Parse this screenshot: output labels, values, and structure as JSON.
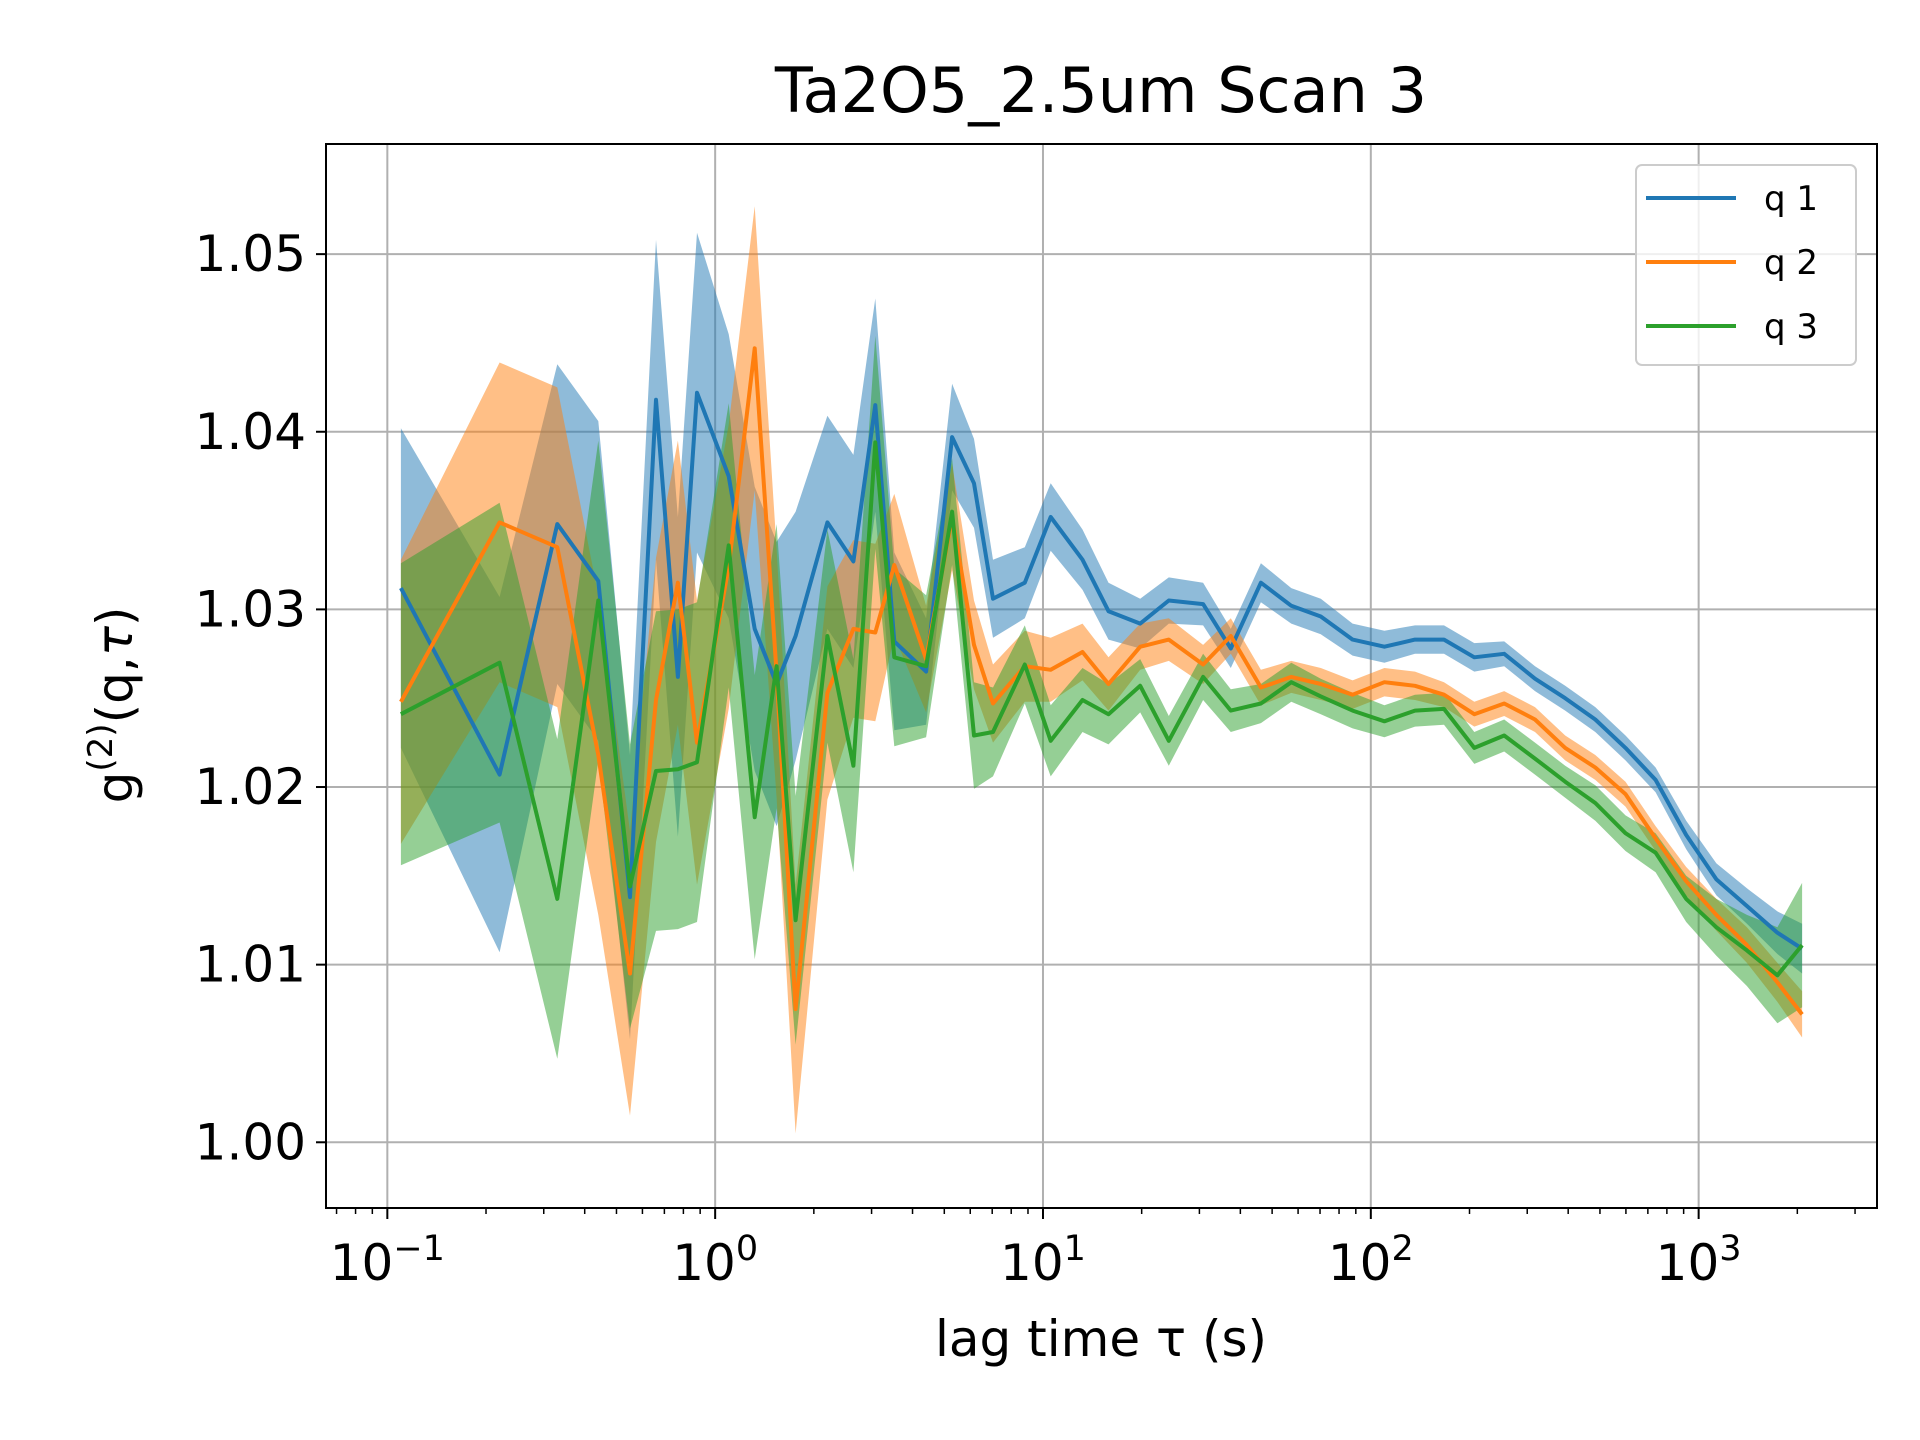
{
  "chart_data": {
    "type": "line",
    "title": "Ta2O5_2.5um Scan 3",
    "xlabel": "lag time τ (s)",
    "ylabel": "g(2)(q,τ)",
    "xscale": "log",
    "xlim": [
      0.065,
      3500
    ],
    "ylim": [
      0.9963,
      1.0562
    ],
    "grid": true,
    "legend_placement": "top-right",
    "yticks": [
      "1.00",
      "1.01",
      "1.02",
      "1.03",
      "1.04",
      "1.05"
    ],
    "xticks": [
      {
        "base": "10",
        "exp": "−1"
      },
      {
        "base": "10",
        "exp": "0"
      },
      {
        "base": "10",
        "exp": "1"
      },
      {
        "base": "10",
        "exp": "2"
      },
      {
        "base": "10",
        "exp": "3"
      }
    ],
    "series": [
      {
        "name": "q 1",
        "color": "#1f77b4",
        "x": [
          0.11,
          0.22,
          0.33,
          0.44,
          0.55,
          0.66,
          0.77,
          0.88,
          1.1,
          1.32,
          1.54,
          1.76,
          2.2,
          2.64,
          3.08,
          3.52,
          4.4,
          5.28,
          6.16,
          7.04,
          8.8,
          10.56,
          13.2,
          15.84,
          19.8,
          24.2,
          30.8,
          37.4,
          46.2,
          57.2,
          70.4,
          88,
          110,
          136.4,
          167.2,
          206.8,
          255.2,
          316.8,
          391.6,
          484,
          598.4,
          739.2,
          916.3,
          1133,
          1403.6,
          1739.1,
          2068
        ],
        "y": [
          1.0312,
          1.0207,
          1.0348,
          1.0316,
          1.0138,
          1.0418,
          1.0262,
          1.0422,
          1.0375,
          1.0289,
          1.0258,
          1.0285,
          1.0349,
          1.0327,
          1.0415,
          1.0282,
          1.0265,
          1.0397,
          1.0371,
          1.0306,
          1.0315,
          1.0352,
          1.0328,
          1.0299,
          1.0292,
          1.0305,
          1.0303,
          1.0278,
          1.0315,
          1.0302,
          1.0296,
          1.0283,
          1.0279,
          1.0283,
          1.0283,
          1.0273,
          1.0275,
          1.0261,
          1.025,
          1.0238,
          1.0222,
          1.0204,
          1.0173,
          1.0148,
          1.0133,
          1.0118,
          1.0109
        ],
        "err": [
          0.009,
          0.01,
          0.009,
          0.009,
          0.008,
          0.009,
          0.009,
          0.009,
          0.008,
          0.008,
          0.008,
          0.007,
          0.006,
          0.006,
          0.006,
          0.005,
          0.003,
          0.003,
          0.0025,
          0.0022,
          0.002,
          0.0019,
          0.0017,
          0.0016,
          0.0014,
          0.0013,
          0.0012,
          0.0011,
          0.0011,
          0.001,
          0.001,
          0.0009,
          0.0009,
          0.0008,
          0.0008,
          0.0008,
          0.0007,
          0.0007,
          0.0007,
          0.0007,
          0.0007,
          0.0007,
          0.0008,
          0.0009,
          0.001,
          0.0012,
          0.0014
        ]
      },
      {
        "name": "q 2",
        "color": "#ff7f0e",
        "x": [
          0.11,
          0.22,
          0.33,
          0.44,
          0.55,
          0.66,
          0.77,
          0.88,
          1.1,
          1.32,
          1.54,
          1.76,
          2.2,
          2.64,
          3.08,
          3.52,
          4.4,
          5.28,
          6.16,
          7.04,
          8.8,
          10.56,
          13.2,
          15.84,
          19.8,
          24.2,
          30.8,
          37.4,
          46.2,
          57.2,
          70.4,
          88,
          110,
          136.4,
          167.2,
          206.8,
          255.2,
          316.8,
          391.6,
          484,
          598.4,
          739.2,
          916.3,
          1133,
          1403.6,
          1739.1,
          2068
        ],
        "y": [
          1.0248,
          1.0349,
          1.0335,
          1.0218,
          1.0095,
          1.0249,
          1.0315,
          1.0225,
          1.0324,
          1.0447,
          1.0264,
          1.0075,
          1.0253,
          1.0289,
          1.0287,
          1.0325,
          1.0272,
          1.0352,
          1.028,
          1.0247,
          1.0268,
          1.0266,
          1.0276,
          1.0258,
          1.0279,
          1.0283,
          1.0269,
          1.0285,
          1.0256,
          1.0262,
          1.0258,
          1.0252,
          1.0259,
          1.0257,
          1.0252,
          1.0241,
          1.0247,
          1.0238,
          1.0222,
          1.0211,
          1.0196,
          1.0171,
          1.0147,
          1.0128,
          1.0111,
          1.009,
          1.0072
        ],
        "err": [
          0.008,
          0.009,
          0.009,
          0.009,
          0.008,
          0.008,
          0.008,
          0.008,
          0.008,
          0.008,
          0.007,
          0.007,
          0.006,
          0.005,
          0.005,
          0.004,
          0.003,
          0.003,
          0.0025,
          0.0022,
          0.002,
          0.0018,
          0.0016,
          0.0015,
          0.0013,
          0.0012,
          0.0011,
          0.001,
          0.001,
          0.0009,
          0.0009,
          0.0008,
          0.0008,
          0.0008,
          0.0007,
          0.0007,
          0.0007,
          0.0007,
          0.0007,
          0.0007,
          0.0007,
          0.0007,
          0.0008,
          0.0009,
          0.001,
          0.0011,
          0.0013
        ]
      },
      {
        "name": "q 3",
        "color": "#2ca02c",
        "x": [
          0.11,
          0.22,
          0.33,
          0.44,
          0.55,
          0.66,
          0.77,
          0.88,
          1.1,
          1.32,
          1.54,
          1.76,
          2.2,
          2.64,
          3.08,
          3.52,
          4.4,
          5.28,
          6.16,
          7.04,
          8.8,
          10.56,
          13.2,
          15.84,
          19.8,
          24.2,
          30.8,
          37.4,
          46.2,
          57.2,
          70.4,
          88,
          110,
          136.4,
          167.2,
          206.8,
          255.2,
          316.8,
          391.6,
          484,
          598.4,
          739.2,
          916.3,
          1133,
          1403.6,
          1739.1,
          2068
        ],
        "y": [
          1.0241,
          1.027,
          1.0137,
          1.0305,
          1.0144,
          1.0209,
          1.021,
          1.0214,
          1.0336,
          1.0183,
          1.0268,
          1.0125,
          1.0285,
          1.0212,
          1.0394,
          1.0273,
          1.0268,
          1.0355,
          1.0229,
          1.0231,
          1.0269,
          1.0226,
          1.0249,
          1.0241,
          1.0257,
          1.0226,
          1.0262,
          1.0243,
          1.0247,
          1.0259,
          1.0251,
          1.0243,
          1.0237,
          1.0243,
          1.0244,
          1.0222,
          1.0229,
          1.0216,
          1.0203,
          1.0191,
          1.0174,
          1.0163,
          1.0137,
          1.0121,
          1.0108,
          1.0094,
          1.0111
        ],
        "err": [
          0.0085,
          0.009,
          0.009,
          0.009,
          0.008,
          0.009,
          0.009,
          0.009,
          0.008,
          0.008,
          0.008,
          0.007,
          0.006,
          0.006,
          0.006,
          0.005,
          0.004,
          0.003,
          0.003,
          0.0025,
          0.0022,
          0.002,
          0.0018,
          0.0017,
          0.0015,
          0.0014,
          0.0013,
          0.0012,
          0.0011,
          0.0011,
          0.001,
          0.001,
          0.0009,
          0.0009,
          0.0009,
          0.0009,
          0.0009,
          0.0009,
          0.0009,
          0.001,
          0.001,
          0.0011,
          0.0013,
          0.0016,
          0.002,
          0.0027,
          0.0035
        ]
      }
    ]
  }
}
